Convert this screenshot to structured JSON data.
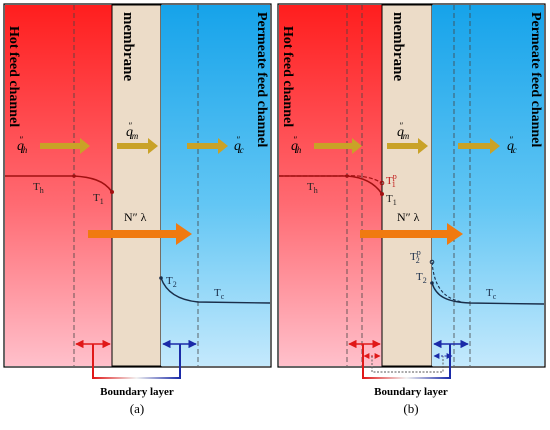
{
  "panels": [
    {
      "id": "a",
      "caption": "(a)",
      "hot_label": "Hot feed channel",
      "membrane_label": "membrane",
      "permeate_label": "Permeate feed channel",
      "q_hot_sup": "″",
      "q_hot_sub": "h",
      "q_mem_sup": "″",
      "q_mem_sub": "m",
      "q_cold_sup": "″",
      "q_cold_sub": "c",
      "flux_label": "N″ λ",
      "Th_label": "T",
      "Th_sub": "h",
      "T1_label": "T",
      "T1_sub": "1",
      "T2_label": "T",
      "T2_sub": "2",
      "Tc_label": "T",
      "Tc_sub": "c",
      "boundary_layer": "Boundary layer"
    },
    {
      "id": "b",
      "caption": "(b)",
      "hot_label": "Hot feed channel",
      "membrane_label": "membrane",
      "permeate_label": "Permeate feed channel",
      "q_hot_sup": "″",
      "q_hot_sub": "h",
      "q_mem_sup": "″",
      "q_mem_sub": "m",
      "q_cold_sup": "″",
      "q_cold_sub": "c",
      "flux_label": "N″ λ",
      "Th_label": "T",
      "Th_sub": "h",
      "T1_label": "T",
      "T1_sub": "1",
      "T1p_label": "T",
      "T1p_sup": "p",
      "T1p_sub": "1",
      "T2_label": "T",
      "T2_sub": "2",
      "T2p_label": "T",
      "T2p_sup": "p",
      "T2p_sub": "2",
      "Tc_label": "T",
      "Tc_sub": "c",
      "boundary_layer": "Boundary layer"
    }
  ],
  "colors": {
    "hot_top": "#ff1e1e",
    "hot_bottom": "#ffb8c4",
    "membrane": "#ecdcc8",
    "cold_top": "#1fa8ec",
    "cold_bottom": "#bfe6fb",
    "heat_arrow": "#c9a227",
    "flux_arrow": "#f07a10",
    "hot_curve": "#a01010",
    "cold_curve": "#1a2e4a",
    "boundary_red": "#e01818",
    "boundary_blue": "#1a2aa8"
  }
}
